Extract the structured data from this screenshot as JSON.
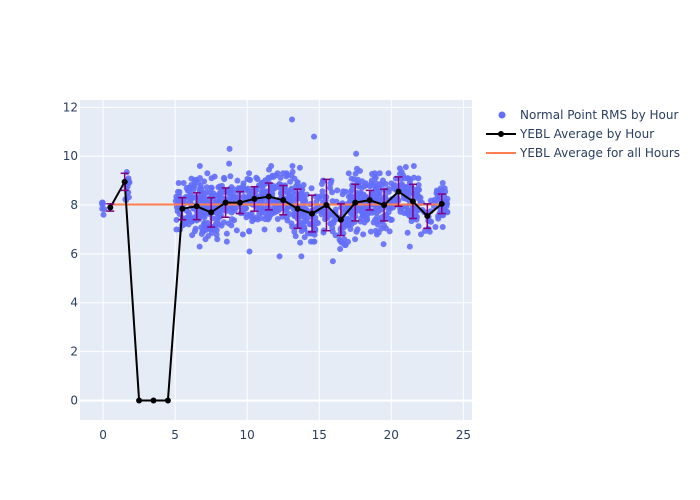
{
  "chart_data": {
    "type": "scatter",
    "xlabel": "",
    "ylabel": "",
    "xlim": [
      -1.6,
      25.6
    ],
    "ylim": [
      -0.8,
      12.3
    ],
    "x_ticks": [
      0,
      5,
      10,
      15,
      20,
      25
    ],
    "y_ticks": [
      0,
      2,
      4,
      6,
      8,
      10,
      12
    ],
    "x_tick_labels": [
      "0",
      "5",
      "10",
      "15",
      "20",
      "25"
    ],
    "y_tick_labels": [
      "0",
      "2",
      "4",
      "6",
      "8",
      "10",
      "12"
    ],
    "grid": true,
    "legend_position": "top-right",
    "colors": {
      "plot_bg": "#e5ecf6",
      "grid": "#ffffff",
      "points": "#636efa",
      "average_line": "#000000",
      "overall_line": "#ff7f50",
      "error_bars": "#800080"
    },
    "legend": [
      {
        "key": "points",
        "label": "Normal Point RMS by Hour"
      },
      {
        "key": "average",
        "label": "YEBL Average by Hour"
      },
      {
        "key": "overall",
        "label": "YEBL Average for all Hours"
      }
    ],
    "series": [
      {
        "name": "Normal Point RMS by Hour",
        "kind": "scatter-clusters",
        "clusters": [
          {
            "x": 0.0,
            "width": 0.2,
            "count": 6,
            "center": 7.9,
            "spread": 0.15,
            "min": 7.6,
            "max": 8.1
          },
          {
            "x": 1.7,
            "width": 0.3,
            "count": 14,
            "center": 8.8,
            "spread": 0.35,
            "min": 8.2,
            "max": 9.35
          },
          {
            "x": 5.5,
            "width": 1.0,
            "count": 40,
            "center": 7.9,
            "spread": 0.45,
            "min": 7.0,
            "max": 8.9
          },
          {
            "x": 6.5,
            "width": 1.0,
            "count": 70,
            "center": 8.0,
            "spread": 0.55,
            "min": 6.3,
            "max": 9.6
          },
          {
            "x": 7.5,
            "width": 1.0,
            "count": 70,
            "center": 7.8,
            "spread": 0.55,
            "min": 6.6,
            "max": 9.3
          },
          {
            "x": 8.5,
            "width": 1.0,
            "count": 60,
            "center": 8.1,
            "spread": 0.55,
            "min": 6.5,
            "max": 10.3
          },
          {
            "x": 9.5,
            "width": 1.0,
            "count": 40,
            "center": 8.1,
            "spread": 0.45,
            "min": 6.8,
            "max": 9.0
          },
          {
            "x": 10.5,
            "width": 1.0,
            "count": 60,
            "center": 8.2,
            "spread": 0.5,
            "min": 6.1,
            "max": 9.3
          },
          {
            "x": 11.5,
            "width": 1.0,
            "count": 70,
            "center": 8.3,
            "spread": 0.5,
            "min": 7.0,
            "max": 9.6
          },
          {
            "x": 12.5,
            "width": 1.0,
            "count": 60,
            "center": 8.1,
            "spread": 0.6,
            "min": 5.9,
            "max": 9.3
          },
          {
            "x": 13.5,
            "width": 1.0,
            "count": 70,
            "center": 7.8,
            "spread": 0.7,
            "min": 5.9,
            "max": 11.5
          },
          {
            "x": 14.5,
            "width": 1.0,
            "count": 40,
            "center": 7.6,
            "spread": 0.6,
            "min": 6.5,
            "max": 10.8
          },
          {
            "x": 15.5,
            "width": 1.0,
            "count": 40,
            "center": 8.0,
            "spread": 0.6,
            "min": 5.7,
            "max": 9.0
          },
          {
            "x": 16.5,
            "width": 1.0,
            "count": 40,
            "center": 7.4,
            "spread": 0.6,
            "min": 6.2,
            "max": 8.6
          },
          {
            "x": 17.5,
            "width": 1.0,
            "count": 70,
            "center": 8.1,
            "spread": 0.6,
            "min": 6.6,
            "max": 10.1
          },
          {
            "x": 18.5,
            "width": 1.0,
            "count": 70,
            "center": 8.2,
            "spread": 0.5,
            "min": 6.8,
            "max": 9.3
          },
          {
            "x": 19.5,
            "width": 1.0,
            "count": 50,
            "center": 8.0,
            "spread": 0.6,
            "min": 6.4,
            "max": 9.3
          },
          {
            "x": 20.5,
            "width": 1.0,
            "count": 40,
            "center": 8.5,
            "spread": 0.5,
            "min": 7.4,
            "max": 9.5
          },
          {
            "x": 21.5,
            "width": 1.0,
            "count": 60,
            "center": 8.1,
            "spread": 0.6,
            "min": 6.3,
            "max": 9.6
          },
          {
            "x": 22.5,
            "width": 1.0,
            "count": 15,
            "center": 7.6,
            "spread": 0.4,
            "min": 6.8,
            "max": 8.3
          },
          {
            "x": 23.5,
            "width": 1.0,
            "count": 40,
            "center": 8.1,
            "spread": 0.4,
            "min": 7.1,
            "max": 8.9
          }
        ]
      },
      {
        "name": "YEBL Average by Hour",
        "kind": "line-markers",
        "x": [
          0.5,
          1.5,
          2.5,
          3.5,
          4.5,
          5.5,
          6.5,
          7.5,
          8.5,
          9.5,
          10.5,
          11.5,
          12.5,
          13.5,
          14.5,
          15.5,
          16.5,
          17.5,
          18.5,
          19.5,
          20.5,
          21.5,
          22.5,
          23.5
        ],
        "y": [
          7.9,
          8.95,
          0.0,
          0.0,
          0.0,
          7.85,
          7.95,
          7.7,
          8.1,
          8.1,
          8.25,
          8.35,
          8.2,
          7.85,
          7.65,
          8.0,
          7.4,
          8.1,
          8.2,
          8.0,
          8.55,
          8.15,
          7.55,
          8.05
        ],
        "error": [
          0.15,
          0.35,
          null,
          null,
          null,
          0.45,
          0.55,
          0.6,
          0.6,
          0.45,
          0.5,
          0.55,
          0.6,
          0.8,
          0.75,
          1.05,
          0.65,
          0.75,
          0.4,
          0.65,
          0.6,
          0.7,
          0.5,
          0.4
        ]
      },
      {
        "name": "YEBL Average for all Hours",
        "kind": "hline",
        "x": [
          0.5,
          23.5
        ],
        "y": [
          8.02,
          8.02
        ]
      }
    ]
  }
}
